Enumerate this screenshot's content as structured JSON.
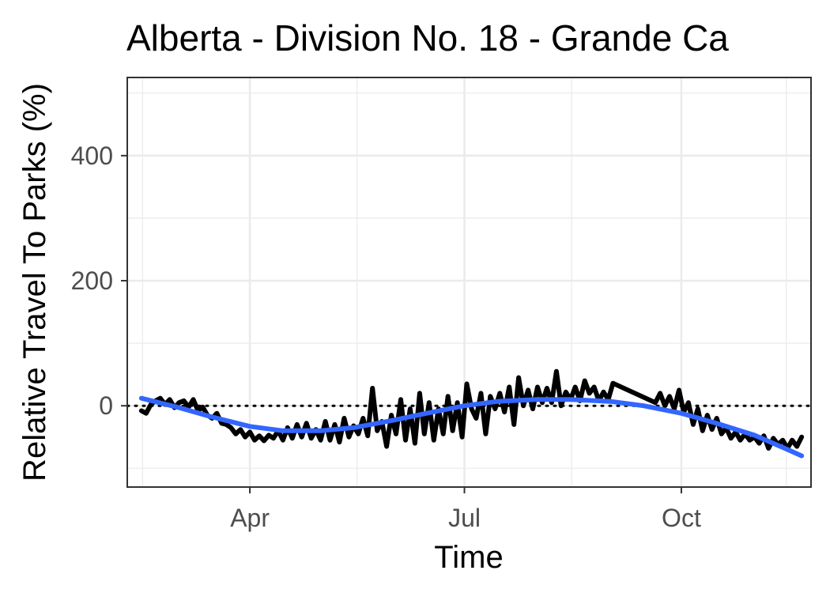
{
  "chart_data": {
    "type": "line",
    "title": "Alberta - Division No. 18 - Grande Ca",
    "xlabel": "Time",
    "ylabel": "Relative Travel To Parks (%)",
    "xlim": [
      "2020-02-09",
      "2020-11-25"
    ],
    "ylim": [
      -130,
      525
    ],
    "x_ticks": [
      {
        "date": "2020-04-01",
        "label": "Apr"
      },
      {
        "date": "2020-07-01",
        "label": "Jul"
      },
      {
        "date": "2020-10-01",
        "label": "Oct"
      }
    ],
    "y_ticks": [
      {
        "value": 0,
        "label": "0"
      },
      {
        "value": 200,
        "label": "200"
      },
      {
        "value": 400,
        "label": "400"
      }
    ],
    "grid": true,
    "reference_line": {
      "y": 0,
      "style": "dotted"
    },
    "series": [
      {
        "color": "#000000",
        "points": [
          [
            "2020-02-15",
            -8
          ],
          [
            "2020-02-17",
            -12
          ],
          [
            "2020-02-19",
            2
          ],
          [
            "2020-02-21",
            8
          ],
          [
            "2020-02-23",
            12
          ],
          [
            "2020-02-25",
            2
          ],
          [
            "2020-02-27",
            10
          ],
          [
            "2020-02-29",
            -3
          ],
          [
            "2020-03-02",
            5
          ],
          [
            "2020-03-04",
            8
          ],
          [
            "2020-03-06",
            -2
          ],
          [
            "2020-03-08",
            10
          ],
          [
            "2020-03-10",
            -8
          ],
          [
            "2020-03-12",
            -2
          ],
          [
            "2020-03-14",
            -15
          ],
          [
            "2020-03-16",
            -20
          ],
          [
            "2020-03-18",
            -12
          ],
          [
            "2020-03-20",
            -28
          ],
          [
            "2020-03-22",
            -30
          ],
          [
            "2020-03-24",
            -35
          ],
          [
            "2020-03-26",
            -45
          ],
          [
            "2020-03-28",
            -38
          ],
          [
            "2020-03-30",
            -50
          ],
          [
            "2020-04-01",
            -42
          ],
          [
            "2020-04-03",
            -55
          ],
          [
            "2020-04-05",
            -48
          ],
          [
            "2020-04-07",
            -56
          ],
          [
            "2020-04-09",
            -47
          ],
          [
            "2020-04-11",
            -52
          ],
          [
            "2020-04-13",
            -40
          ],
          [
            "2020-04-15",
            -55
          ],
          [
            "2020-04-17",
            -35
          ],
          [
            "2020-04-19",
            -52
          ],
          [
            "2020-04-21",
            -30
          ],
          [
            "2020-04-23",
            -50
          ],
          [
            "2020-04-25",
            -28
          ],
          [
            "2020-04-27",
            -52
          ],
          [
            "2020-04-29",
            -38
          ],
          [
            "2020-05-01",
            -55
          ],
          [
            "2020-05-03",
            -25
          ],
          [
            "2020-05-05",
            -55
          ],
          [
            "2020-05-07",
            -30
          ],
          [
            "2020-05-09",
            -58
          ],
          [
            "2020-05-11",
            -20
          ],
          [
            "2020-05-13",
            -50
          ],
          [
            "2020-05-15",
            -32
          ],
          [
            "2020-05-17",
            -45
          ],
          [
            "2020-05-19",
            -20
          ],
          [
            "2020-05-21",
            -48
          ],
          [
            "2020-05-23",
            28
          ],
          [
            "2020-05-25",
            -40
          ],
          [
            "2020-05-27",
            -25
          ],
          [
            "2020-05-29",
            -65
          ],
          [
            "2020-05-31",
            -15
          ],
          [
            "2020-06-02",
            -45
          ],
          [
            "2020-06-04",
            10
          ],
          [
            "2020-06-06",
            -55
          ],
          [
            "2020-06-08",
            -5
          ],
          [
            "2020-06-10",
            -60
          ],
          [
            "2020-06-12",
            20
          ],
          [
            "2020-06-14",
            -45
          ],
          [
            "2020-06-16",
            5
          ],
          [
            "2020-06-18",
            -55
          ],
          [
            "2020-06-20",
            -5
          ],
          [
            "2020-06-22",
            -45
          ],
          [
            "2020-06-24",
            15
          ],
          [
            "2020-06-26",
            -40
          ],
          [
            "2020-06-28",
            5
          ],
          [
            "2020-06-30",
            -50
          ],
          [
            "2020-07-02",
            35
          ],
          [
            "2020-07-04",
            -5
          ],
          [
            "2020-07-06",
            -20
          ],
          [
            "2020-07-08",
            20
          ],
          [
            "2020-07-10",
            -45
          ],
          [
            "2020-07-12",
            15
          ],
          [
            "2020-07-14",
            -5
          ],
          [
            "2020-07-16",
            20
          ],
          [
            "2020-07-18",
            -10
          ],
          [
            "2020-07-20",
            30
          ],
          [
            "2020-07-22",
            -30
          ],
          [
            "2020-07-24",
            45
          ],
          [
            "2020-07-26",
            0
          ],
          [
            "2020-07-28",
            25
          ],
          [
            "2020-07-30",
            -5
          ],
          [
            "2020-08-01",
            30
          ],
          [
            "2020-08-03",
            5
          ],
          [
            "2020-08-05",
            28
          ],
          [
            "2020-08-07",
            5
          ],
          [
            "2020-08-09",
            55
          ],
          [
            "2020-08-11",
            0
          ],
          [
            "2020-08-13",
            22
          ],
          [
            "2020-08-15",
            10
          ],
          [
            "2020-08-17",
            30
          ],
          [
            "2020-08-19",
            8
          ],
          [
            "2020-08-21",
            40
          ],
          [
            "2020-08-23",
            20
          ],
          [
            "2020-08-25",
            30
          ],
          [
            "2020-08-27",
            8
          ],
          [
            "2020-08-29",
            22
          ],
          [
            "2020-08-31",
            10
          ],
          [
            "2020-09-02",
            36
          ],
          [
            "2020-09-20",
            5
          ],
          [
            "2020-09-22",
            20
          ],
          [
            "2020-09-24",
            0
          ],
          [
            "2020-09-26",
            15
          ],
          [
            "2020-09-28",
            -5
          ],
          [
            "2020-09-30",
            25
          ],
          [
            "2020-10-02",
            -10
          ],
          [
            "2020-10-04",
            5
          ],
          [
            "2020-10-06",
            -30
          ],
          [
            "2020-10-08",
            -5
          ],
          [
            "2020-10-10",
            -40
          ],
          [
            "2020-10-12",
            -15
          ],
          [
            "2020-10-14",
            -38
          ],
          [
            "2020-10-16",
            -20
          ],
          [
            "2020-10-18",
            -45
          ],
          [
            "2020-10-20",
            -35
          ],
          [
            "2020-10-22",
            -52
          ],
          [
            "2020-10-24",
            -42
          ],
          [
            "2020-10-26",
            -55
          ],
          [
            "2020-10-28",
            -45
          ],
          [
            "2020-10-30",
            -55
          ],
          [
            "2020-11-01",
            -50
          ],
          [
            "2020-11-03",
            -60
          ],
          [
            "2020-11-05",
            -48
          ],
          [
            "2020-11-07",
            -68
          ],
          [
            "2020-11-09",
            -52
          ],
          [
            "2020-11-11",
            -62
          ],
          [
            "2020-11-13",
            -55
          ],
          [
            "2020-11-15",
            -68
          ],
          [
            "2020-11-17",
            -55
          ],
          [
            "2020-11-19",
            -65
          ],
          [
            "2020-11-21",
            -50
          ]
        ]
      },
      {
        "color": "#3366FF",
        "points": [
          [
            "2020-02-15",
            12
          ],
          [
            "2020-03-01",
            -2
          ],
          [
            "2020-03-15",
            -17
          ],
          [
            "2020-04-01",
            -33
          ],
          [
            "2020-04-15",
            -40
          ],
          [
            "2020-05-01",
            -40
          ],
          [
            "2020-05-15",
            -35
          ],
          [
            "2020-06-01",
            -23
          ],
          [
            "2020-06-15",
            -12
          ],
          [
            "2020-07-01",
            0
          ],
          [
            "2020-07-15",
            7
          ],
          [
            "2020-08-01",
            10
          ],
          [
            "2020-08-15",
            10
          ],
          [
            "2020-09-01",
            7
          ],
          [
            "2020-09-15",
            0
          ],
          [
            "2020-10-01",
            -12
          ],
          [
            "2020-10-15",
            -27
          ],
          [
            "2020-11-01",
            -47
          ],
          [
            "2020-11-15",
            -70
          ],
          [
            "2020-11-21",
            -80
          ]
        ]
      }
    ]
  }
}
